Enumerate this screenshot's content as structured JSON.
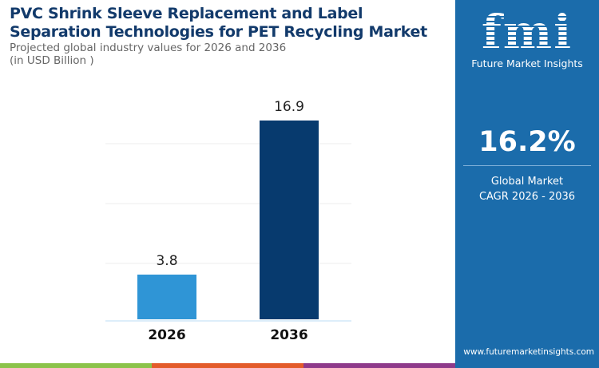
{
  "header": {
    "title": "PVC Shrink Sleeve Replacement and Label Separation Technologies for PET Recycling Market",
    "subtitle": "Projected global industry values for 2026 and 2036",
    "unit": "(in USD Billion )"
  },
  "chart_data": {
    "type": "bar",
    "categories": [
      "2026",
      "2036"
    ],
    "values": [
      3.8,
      16.9
    ],
    "data_labels": [
      "3.8",
      "16.9"
    ],
    "ylim": [
      0,
      19
    ],
    "grid": true,
    "colors": [
      "#2f95d6",
      "#073a6e"
    ]
  },
  "sidebar": {
    "brand": "fmi",
    "brand_name": "Future Market Insights",
    "cagr_value": "16.2%",
    "cagr_label_1": "Global Market",
    "cagr_label_2": "CAGR 2026 - 2036",
    "url": "www.futuremarketinsights.com"
  },
  "strip_colors": [
    "#8bc34a",
    "#e35b2a",
    "#8e3a8a"
  ]
}
